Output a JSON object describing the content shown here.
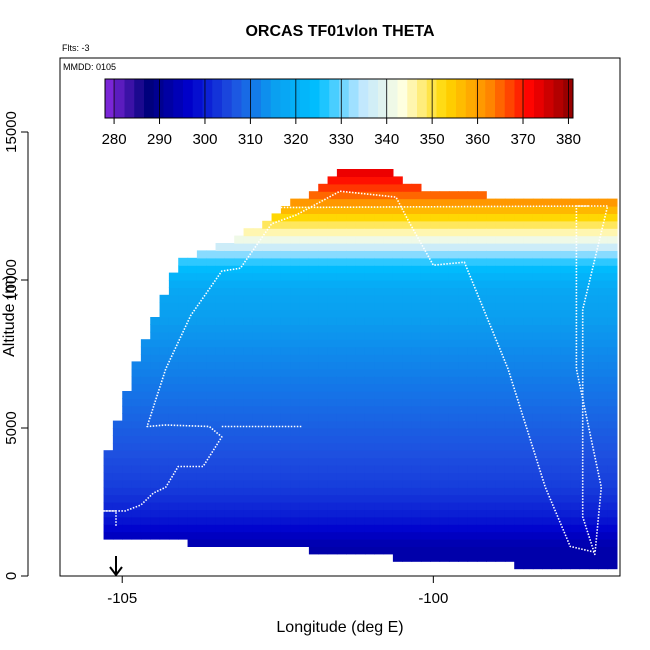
{
  "chart_data": {
    "type": "heatmap",
    "title": "ORCAS TF01vlon THETA",
    "subtitle_flights": "Flts: -3",
    "subtitle_date": "MMDD: 0105",
    "xlabel": "Longitude (deg E)",
    "ylabel": "Altitude (m)",
    "xlim": [
      -106.0,
      -97.0
    ],
    "ylim": [
      0,
      17500
    ],
    "x_ticks": [
      -105,
      -100
    ],
    "x_tick_labels": [
      "-105",
      "-100"
    ],
    "y_ticks": [
      0,
      5000,
      10000,
      15000
    ],
    "y_tick_labels": [
      "0",
      "5000",
      "10000",
      "15000"
    ],
    "grid": false,
    "colorbar": {
      "placement": "top",
      "min": 278,
      "max": 381,
      "ticks": [
        280,
        290,
        300,
        310,
        320,
        330,
        340,
        350,
        360,
        370,
        380
      ],
      "tick_labels": [
        "280",
        "290",
        "300",
        "310",
        "320",
        "330",
        "340",
        "350",
        "360",
        "370",
        "380"
      ],
      "colors": [
        "#8a2be2",
        "#00007a",
        "#0000cd",
        "#1e50e0",
        "#0aa0f0",
        "#00bfff",
        "#bde6ff",
        "#ffffe0",
        "#ffd700",
        "#ff8c00",
        "#ff0000",
        "#8b0000"
      ]
    },
    "field": {
      "x_step": 0.15,
      "z_step": 250,
      "theta_profile": [
        [
          0,
          294
        ],
        [
          1000,
          294
        ],
        [
          2000,
          301
        ],
        [
          3000,
          305
        ],
        [
          4000,
          307
        ],
        [
          5000,
          309
        ],
        [
          6000,
          311
        ],
        [
          7500,
          314
        ],
        [
          8500,
          316
        ],
        [
          9500,
          318
        ],
        [
          10000,
          321
        ],
        [
          10500,
          326
        ],
        [
          11000,
          335
        ],
        [
          11500,
          345
        ],
        [
          12000,
          352
        ],
        [
          12500,
          360
        ],
        [
          13000,
          368
        ],
        [
          13800,
          376
        ]
      ],
      "top_boundary": [
        [
          -105.3,
          3500
        ],
        [
          -105.05,
          5200
        ],
        [
          -104.8,
          7000
        ],
        [
          -104.55,
          8200
        ],
        [
          -104.3,
          9600
        ],
        [
          -104.0,
          10600
        ],
        [
          -103.2,
          11300
        ],
        [
          -102.8,
          11700
        ],
        [
          -102.6,
          12000
        ],
        [
          -102.3,
          12500
        ],
        [
          -102.0,
          12800
        ],
        [
          -101.7,
          13100
        ],
        [
          -101.6,
          13500
        ],
        [
          -101.2,
          13700
        ],
        [
          -100.7,
          13600
        ],
        [
          -100.4,
          13200
        ],
        [
          -100.2,
          12900
        ],
        [
          -98.0,
          12600
        ],
        [
          -97.1,
          12600
        ]
      ],
      "bottom_boundary": [
        [
          -105.3,
          1500
        ],
        [
          -104.3,
          1300
        ],
        [
          -102.0,
          1000
        ],
        [
          -100.3,
          700
        ],
        [
          -99.0,
          550
        ],
        [
          -98.5,
          450
        ],
        [
          -97.5,
          250
        ],
        [
          -97.1,
          250
        ]
      ]
    },
    "flight_track": [
      [
        -105.1,
        1700
      ],
      [
        -105.1,
        2200
      ],
      [
        -105.3,
        2200
      ],
      [
        -104.95,
        2200
      ],
      [
        -104.7,
        2400
      ],
      [
        -104.5,
        2800
      ],
      [
        -104.3,
        3000
      ],
      [
        -104.1,
        3700
      ],
      [
        -103.7,
        3700
      ],
      [
        -103.4,
        4700
      ],
      [
        -103.6,
        5050
      ],
      [
        -104.3,
        5100
      ],
      [
        -104.6,
        5050
      ],
      [
        -104.3,
        7000
      ],
      [
        -103.9,
        8800
      ],
      [
        -103.4,
        10300
      ],
      [
        -103.1,
        10400
      ],
      [
        -102.6,
        11900
      ],
      [
        -102.2,
        12200
      ],
      [
        -101.5,
        13000
      ],
      [
        -100.6,
        12800
      ],
      [
        -100.4,
        12000
      ],
      [
        -100.0,
        10500
      ],
      [
        -99.5,
        10600
      ],
      [
        -98.8,
        7000
      ],
      [
        -98.2,
        3000
      ],
      [
        -97.8,
        1000
      ],
      [
        -97.4,
        800
      ],
      [
        -97.3,
        3000
      ],
      [
        -97.7,
        7000
      ],
      [
        -97.7,
        12500
      ],
      [
        -97.2,
        12500
      ],
      [
        -97.6,
        9000
      ],
      [
        -97.6,
        5000
      ],
      [
        -97.6,
        2000
      ],
      [
        -97.4,
        700
      ]
    ],
    "side_track": [
      [
        -103.4,
        5050
      ],
      [
        -102.1,
        5050
      ]
    ],
    "upper_track": [
      [
        -102.5,
        12450
      ],
      [
        -97.5,
        12500
      ]
    ],
    "marker_longitude": -105.1
  }
}
